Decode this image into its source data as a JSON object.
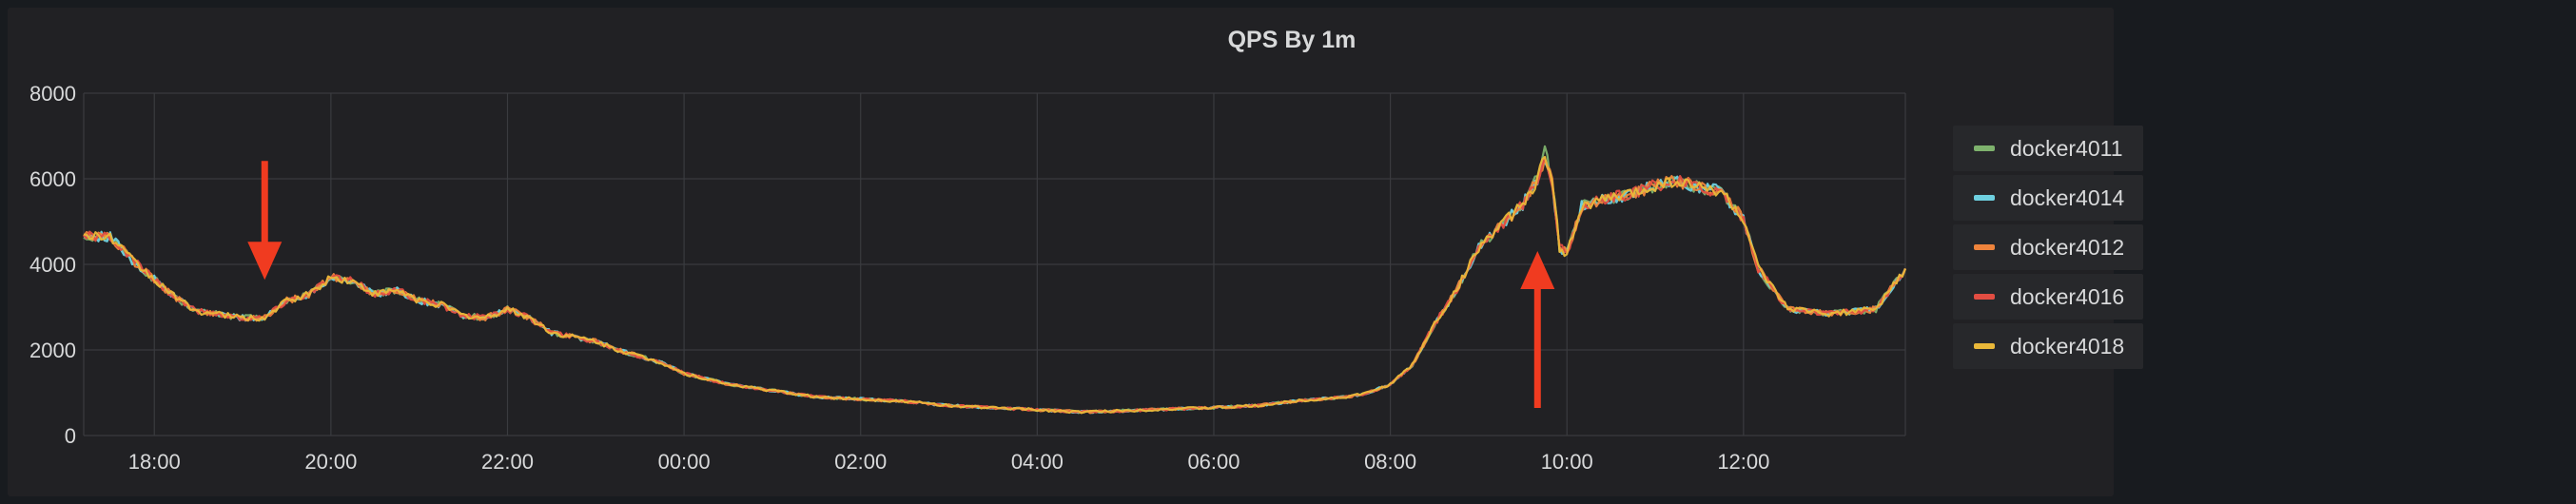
{
  "panel": {
    "title": "QPS By 1m"
  },
  "legend": {
    "items": [
      {
        "label": "docker4011",
        "color": "#7eb26d"
      },
      {
        "label": "docker4014",
        "color": "#6ed0e0"
      },
      {
        "label": "docker4012",
        "color": "#ef843c"
      },
      {
        "label": "docker4016",
        "color": "#e24d42"
      },
      {
        "label": "docker4018",
        "color": "#eab839"
      }
    ]
  },
  "annotations": [
    {
      "name": "arrow-down",
      "color": "#f03b20",
      "x": "19:15",
      "y": 3750,
      "direction": "down"
    },
    {
      "name": "arrow-up",
      "color": "#f03b20",
      "x": "09:40",
      "y": 4200,
      "direction": "up"
    }
  ],
  "chart_data": {
    "type": "line",
    "title": "QPS By 1m",
    "xlabel": "",
    "ylabel": "",
    "x_range": [
      "17:12",
      "13:50"
    ],
    "ylim": [
      0,
      8000
    ],
    "x_ticks": [
      "18:00",
      "20:00",
      "22:00",
      "00:00",
      "02:00",
      "04:00",
      "06:00",
      "08:00",
      "10:00",
      "12:00"
    ],
    "y_ticks": [
      "0",
      "2000",
      "4000",
      "6000",
      "8000"
    ],
    "grid": true,
    "legend_position": "right",
    "x": [
      "17:12",
      "17:30",
      "17:45",
      "18:00",
      "18:15",
      "18:30",
      "19:00",
      "19:15",
      "19:30",
      "19:45",
      "20:00",
      "20:15",
      "20:30",
      "20:45",
      "21:00",
      "21:15",
      "21:30",
      "21:45",
      "22:00",
      "22:15",
      "22:30",
      "23:00",
      "23:15",
      "23:30",
      "23:45",
      "00:00",
      "00:30",
      "01:00",
      "01:30",
      "02:00",
      "02:30",
      "03:00",
      "03:30",
      "04:00",
      "04:30",
      "05:00",
      "05:30",
      "06:00",
      "06:30",
      "07:00",
      "07:30",
      "07:45",
      "08:00",
      "08:15",
      "08:30",
      "08:45",
      "09:00",
      "09:15",
      "09:30",
      "09:35",
      "09:40",
      "09:45",
      "09:50",
      "09:55",
      "10:00",
      "10:10",
      "10:30",
      "10:45",
      "11:00",
      "11:15",
      "11:30",
      "11:45",
      "12:00",
      "12:10",
      "12:30",
      "13:00",
      "13:30",
      "13:50"
    ],
    "series": [
      {
        "name": "docker4011",
        "values": [
          4650,
          4650,
          4100,
          3650,
          3200,
          2900,
          2750,
          2750,
          3150,
          3300,
          3700,
          3600,
          3300,
          3400,
          3150,
          3050,
          2800,
          2750,
          2950,
          2750,
          2400,
          2200,
          2000,
          1850,
          1700,
          1450,
          1200,
          1050,
          900,
          850,
          800,
          700,
          650,
          600,
          550,
          580,
          620,
          650,
          700,
          820,
          900,
          1000,
          1200,
          1650,
          2600,
          3400,
          4400,
          4900,
          5400,
          5700,
          6050,
          6850,
          5900,
          4400,
          4250,
          5350,
          5550,
          5650,
          5850,
          5950,
          5800,
          5700,
          5050,
          3900,
          2950,
          2850,
          2950,
          3900
        ]
      },
      {
        "name": "docker4014",
        "values": [
          4650,
          4650,
          4100,
          3650,
          3200,
          2900,
          2750,
          2750,
          3150,
          3300,
          3700,
          3600,
          3300,
          3400,
          3150,
          3050,
          2800,
          2750,
          2950,
          2750,
          2400,
          2200,
          2000,
          1850,
          1700,
          1450,
          1200,
          1050,
          900,
          850,
          800,
          700,
          650,
          600,
          550,
          580,
          620,
          650,
          700,
          820,
          900,
          1000,
          1200,
          1650,
          2600,
          3400,
          4400,
          4900,
          5400,
          5700,
          6000,
          6450,
          5900,
          4400,
          4250,
          5350,
          5550,
          5650,
          5850,
          5950,
          5800,
          5700,
          5050,
          3900,
          2950,
          2850,
          2950,
          3900
        ]
      },
      {
        "name": "docker4012",
        "values": [
          4650,
          4650,
          4100,
          3650,
          3200,
          2900,
          2750,
          2750,
          3150,
          3300,
          3700,
          3600,
          3300,
          3400,
          3150,
          3050,
          2800,
          2750,
          2950,
          2750,
          2400,
          2200,
          2000,
          1850,
          1700,
          1450,
          1200,
          1050,
          900,
          850,
          800,
          700,
          650,
          600,
          550,
          580,
          620,
          650,
          700,
          820,
          900,
          1000,
          1200,
          1650,
          2600,
          3400,
          4400,
          4900,
          5400,
          5700,
          6000,
          6500,
          5900,
          4400,
          4250,
          5350,
          5550,
          5650,
          5850,
          5950,
          5800,
          5700,
          5050,
          3900,
          2950,
          2850,
          2950,
          3900
        ]
      },
      {
        "name": "docker4016",
        "values": [
          4650,
          4650,
          4100,
          3650,
          3200,
          2900,
          2750,
          2750,
          3150,
          3300,
          3700,
          3600,
          3300,
          3400,
          3150,
          3050,
          2800,
          2750,
          2950,
          2750,
          2400,
          2200,
          2000,
          1850,
          1700,
          1450,
          1200,
          1050,
          900,
          850,
          800,
          700,
          650,
          600,
          550,
          580,
          620,
          650,
          700,
          820,
          900,
          1000,
          1200,
          1650,
          2600,
          3400,
          4400,
          4900,
          5400,
          5700,
          6000,
          6500,
          5900,
          4400,
          4250,
          5350,
          5550,
          5650,
          5850,
          5950,
          5800,
          5700,
          5050,
          3900,
          2950,
          2850,
          2950,
          3900
        ]
      },
      {
        "name": "docker4018",
        "values": [
          4650,
          4650,
          4100,
          3650,
          3200,
          2900,
          2750,
          2750,
          3150,
          3300,
          3700,
          3600,
          3300,
          3400,
          3150,
          3050,
          2800,
          2750,
          2950,
          2750,
          2400,
          2200,
          2000,
          1850,
          1700,
          1450,
          1200,
          1050,
          900,
          850,
          800,
          700,
          650,
          600,
          550,
          580,
          620,
          650,
          700,
          820,
          900,
          1000,
          1200,
          1650,
          2600,
          3400,
          4400,
          4900,
          5400,
          5700,
          6000,
          6500,
          5900,
          4400,
          4250,
          5350,
          5550,
          5650,
          5850,
          5950,
          5800,
          5700,
          5050,
          3900,
          2950,
          2850,
          2950,
          3900
        ]
      }
    ]
  }
}
